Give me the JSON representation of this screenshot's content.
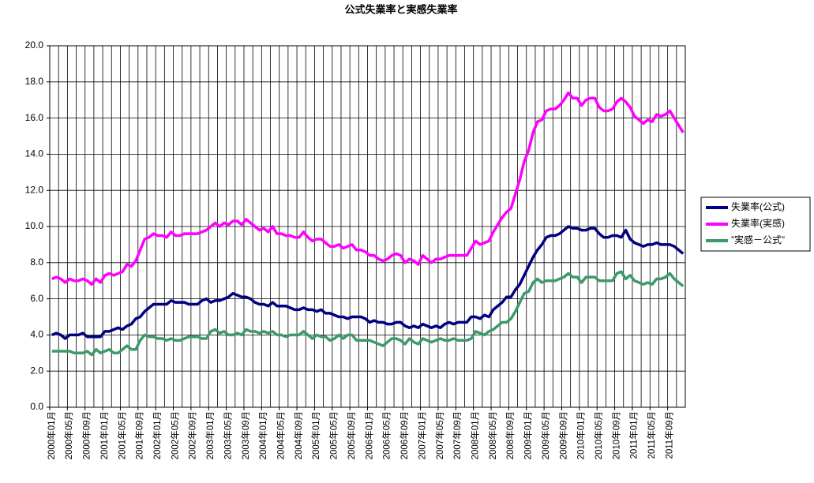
{
  "chart_data": {
    "type": "line",
    "title": "公式失業率と実感失業率",
    "categories": [
      "2000年01月",
      null,
      null,
      null,
      "2000年05月",
      null,
      null,
      null,
      "2000年09月",
      null,
      null,
      null,
      "2001年01月",
      null,
      null,
      null,
      "2001年05月",
      null,
      null,
      null,
      "2001年09月",
      null,
      null,
      null,
      "2002年01月",
      null,
      null,
      null,
      "2002年05月",
      null,
      null,
      null,
      "2002年09月",
      null,
      null,
      null,
      "2003年01月",
      null,
      null,
      null,
      "2003年05月",
      null,
      null,
      null,
      "2003年09月",
      null,
      null,
      null,
      "2004年01月",
      null,
      null,
      null,
      "2004年05月",
      null,
      null,
      null,
      "2004年09月",
      null,
      null,
      null,
      "2005年01月",
      null,
      null,
      null,
      "2005年05月",
      null,
      null,
      null,
      "2005年09月",
      null,
      null,
      null,
      "2006年01月",
      null,
      null,
      null,
      "2006年05月",
      null,
      null,
      null,
      "2006年09月",
      null,
      null,
      null,
      "2007年01月",
      null,
      null,
      null,
      "2007年05月",
      null,
      null,
      null,
      "2007年09月",
      null,
      null,
      null,
      "2008年01月",
      null,
      null,
      null,
      "2008年05月",
      null,
      null,
      null,
      "2008年09月",
      null,
      null,
      null,
      "2009年01月",
      null,
      null,
      null,
      "2009年05月",
      null,
      null,
      null,
      "2009年09月",
      null,
      null,
      null,
      "2010年01月",
      null,
      null,
      null,
      "2010年05月",
      null,
      null,
      null,
      "2010年09月",
      null,
      null,
      null,
      "2011年01月",
      null,
      null,
      null,
      "2011年05月",
      null,
      null,
      null,
      "2011年09月",
      null,
      null,
      null
    ],
    "series": [
      {
        "name": "失業率(公式)",
        "color": "#000080",
        "values": [
          4.0,
          4.1,
          4.0,
          3.8,
          4.0,
          4.0,
          4.0,
          4.1,
          3.9,
          3.9,
          3.9,
          3.9,
          4.2,
          4.2,
          4.3,
          4.4,
          4.3,
          4.5,
          4.6,
          4.9,
          5.0,
          5.3,
          5.5,
          5.7,
          5.7,
          5.7,
          5.7,
          5.9,
          5.8,
          5.8,
          5.8,
          5.7,
          5.7,
          5.7,
          5.9,
          6.0,
          5.8,
          5.9,
          5.9,
          6.0,
          6.1,
          6.3,
          6.2,
          6.1,
          6.1,
          6.0,
          5.8,
          5.7,
          5.7,
          5.6,
          5.8,
          5.6,
          5.6,
          5.6,
          5.5,
          5.4,
          5.4,
          5.5,
          5.4,
          5.4,
          5.3,
          5.4,
          5.2,
          5.2,
          5.1,
          5.0,
          5.0,
          4.9,
          5.0,
          5.0,
          5.0,
          4.9,
          4.7,
          4.8,
          4.7,
          4.7,
          4.6,
          4.6,
          4.7,
          4.7,
          4.5,
          4.4,
          4.5,
          4.4,
          4.6,
          4.5,
          4.4,
          4.5,
          4.4,
          4.6,
          4.7,
          4.6,
          4.7,
          4.7,
          4.7,
          5.0,
          5.0,
          4.9,
          5.1,
          5.0,
          5.4,
          5.6,
          5.8,
          6.1,
          6.1,
          6.5,
          6.8,
          7.3,
          7.8,
          8.3,
          8.7,
          9.0,
          9.4,
          9.5,
          9.5,
          9.6,
          9.8,
          10.0,
          9.9,
          9.9,
          9.8,
          9.8,
          9.9,
          9.9,
          9.6,
          9.4,
          9.4,
          9.5,
          9.5,
          9.4,
          9.8,
          9.3,
          9.1,
          9.0,
          8.9,
          9.0,
          9.0,
          9.1,
          9.0,
          9.0,
          9.0,
          8.9,
          8.7,
          8.5
        ]
      },
      {
        "name": "失業率(実感)",
        "color": "#ff00ff",
        "values": [
          7.1,
          7.2,
          7.1,
          6.9,
          7.1,
          7.0,
          7.0,
          7.1,
          7.0,
          6.8,
          7.1,
          6.9,
          7.3,
          7.4,
          7.3,
          7.4,
          7.5,
          7.9,
          7.8,
          8.1,
          8.7,
          9.3,
          9.4,
          9.6,
          9.5,
          9.5,
          9.4,
          9.7,
          9.5,
          9.5,
          9.6,
          9.6,
          9.6,
          9.6,
          9.7,
          9.8,
          10.0,
          10.2,
          10.0,
          10.2,
          10.1,
          10.3,
          10.3,
          10.1,
          10.4,
          10.2,
          10.0,
          9.8,
          9.9,
          9.7,
          10.0,
          9.6,
          9.6,
          9.5,
          9.5,
          9.4,
          9.4,
          9.7,
          9.4,
          9.2,
          9.3,
          9.3,
          9.1,
          8.9,
          8.9,
          9.0,
          8.8,
          8.9,
          9.0,
          8.7,
          8.7,
          8.6,
          8.4,
          8.4,
          8.2,
          8.1,
          8.2,
          8.4,
          8.5,
          8.4,
          8.0,
          8.2,
          8.1,
          7.9,
          8.4,
          8.2,
          8.0,
          8.2,
          8.2,
          8.3,
          8.4,
          8.4,
          8.4,
          8.4,
          8.4,
          8.8,
          9.2,
          9.0,
          9.1,
          9.2,
          9.7,
          10.1,
          10.5,
          10.8,
          11.0,
          11.8,
          12.6,
          13.6,
          14.2,
          15.2,
          15.8,
          15.9,
          16.4,
          16.5,
          16.5,
          16.7,
          17.0,
          17.4,
          17.1,
          17.1,
          16.7,
          17.0,
          17.1,
          17.1,
          16.6,
          16.4,
          16.4,
          16.5,
          16.9,
          17.1,
          16.9,
          16.6,
          16.1,
          15.9,
          15.7,
          15.9,
          15.8,
          16.2,
          16.1,
          16.2,
          16.4,
          16.0,
          15.6,
          15.2
        ]
      },
      {
        "name": "”実感－公式”",
        "color": "#3c9a6c",
        "values": [
          3.1,
          3.1,
          3.1,
          3.1,
          3.1,
          3.0,
          3.0,
          3.0,
          3.1,
          2.9,
          3.2,
          3.0,
          3.1,
          3.2,
          3.0,
          3.0,
          3.2,
          3.4,
          3.2,
          3.2,
          3.7,
          4.0,
          3.9,
          3.9,
          3.8,
          3.8,
          3.7,
          3.8,
          3.7,
          3.7,
          3.8,
          3.9,
          3.9,
          3.9,
          3.8,
          3.8,
          4.2,
          4.3,
          4.1,
          4.2,
          4.0,
          4.0,
          4.1,
          4.0,
          4.3,
          4.2,
          4.2,
          4.1,
          4.2,
          4.1,
          4.2,
          4.0,
          4.0,
          3.9,
          4.0,
          4.0,
          4.0,
          4.2,
          4.0,
          3.8,
          4.0,
          3.9,
          3.9,
          3.7,
          3.8,
          4.0,
          3.8,
          4.0,
          4.0,
          3.7,
          3.7,
          3.7,
          3.7,
          3.6,
          3.5,
          3.4,
          3.6,
          3.8,
          3.8,
          3.7,
          3.5,
          3.8,
          3.6,
          3.5,
          3.8,
          3.7,
          3.6,
          3.7,
          3.8,
          3.7,
          3.7,
          3.8,
          3.7,
          3.7,
          3.7,
          3.8,
          4.2,
          4.1,
          4.0,
          4.2,
          4.3,
          4.5,
          4.7,
          4.7,
          4.9,
          5.3,
          5.8,
          6.3,
          6.4,
          6.9,
          7.1,
          6.9,
          7.0,
          7.0,
          7.0,
          7.1,
          7.2,
          7.4,
          7.2,
          7.2,
          6.9,
          7.2,
          7.2,
          7.2,
          7.0,
          7.0,
          7.0,
          7.0,
          7.4,
          7.5,
          7.1,
          7.3,
          7.0,
          6.9,
          6.8,
          6.9,
          6.8,
          7.1,
          7.1,
          7.2,
          7.4,
          7.1,
          6.9,
          6.7
        ]
      }
    ],
    "ylim": [
      0,
      20
    ],
    "yticks": [
      {
        "value": 0,
        "label": "0.0"
      },
      {
        "value": 2,
        "label": "2.0"
      },
      {
        "value": 4,
        "label": "4.0"
      },
      {
        "value": 6,
        "label": "6.0"
      },
      {
        "value": 8,
        "label": "8.0"
      },
      {
        "value": 10,
        "label": "10.0"
      },
      {
        "value": 12,
        "label": "12.0"
      },
      {
        "value": 14,
        "label": "14.0"
      },
      {
        "value": 16,
        "label": "16.0"
      },
      {
        "value": 18,
        "label": "18.0"
      },
      {
        "value": 20,
        "label": "20.0"
      }
    ],
    "grid": true,
    "legend": "right"
  }
}
